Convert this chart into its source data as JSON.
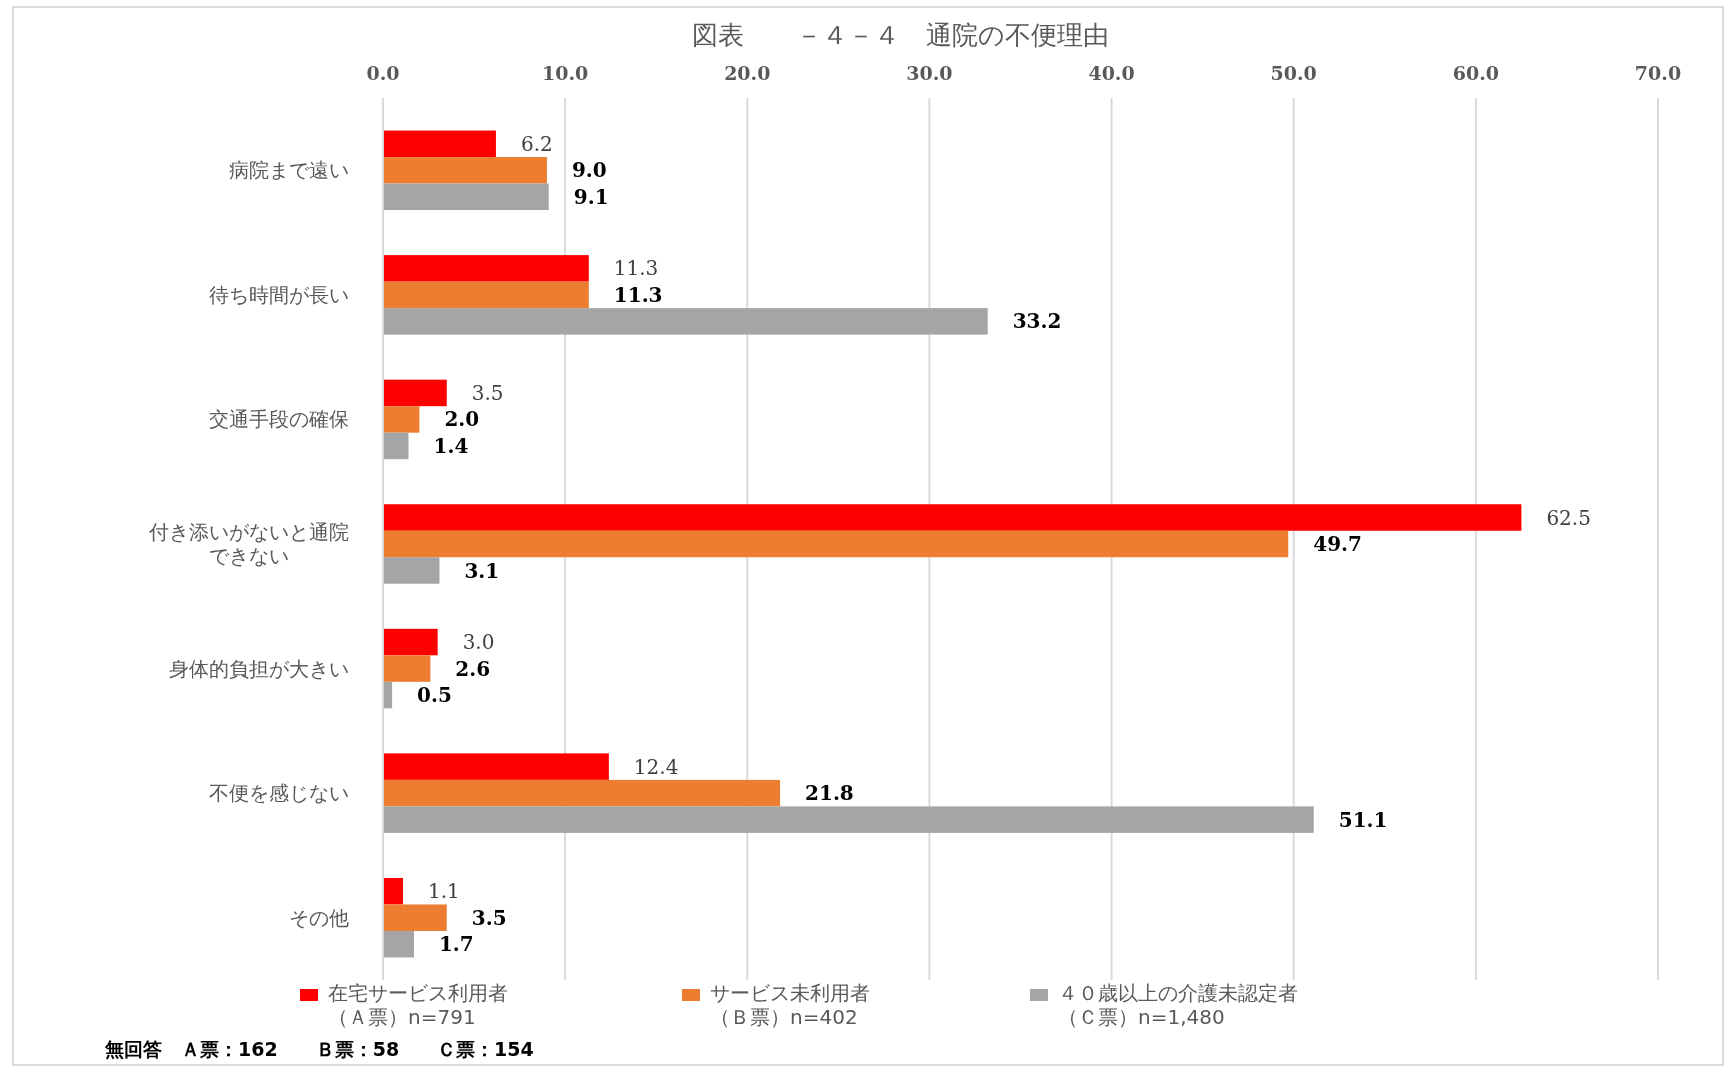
{
  "chart_data": {
    "type": "bar",
    "orientation": "horizontal",
    "title": "図表　　－４－４　通院の不便理由",
    "categories": [
      "病院まで遠い",
      "待ち時間が長い",
      "交通手段の確保",
      "付き添いがないと通院できない",
      "身体的負担が大きい",
      "不便を感じない",
      "その他"
    ],
    "series": [
      {
        "name": "在宅サービス利用者（Ａ票）n=791",
        "color": "#ff0000",
        "values": [
          6.2,
          11.3,
          3.5,
          62.5,
          3.0,
          12.4,
          1.1
        ],
        "value_labels": [
          "6.2",
          "11.3",
          "3.5",
          "62.5",
          "3.0",
          "12.4",
          "1.1"
        ]
      },
      {
        "name": "サービス未利用者（Ｂ票）n=402",
        "color": "#ed7d31",
        "values": [
          9.0,
          11.3,
          2.0,
          49.7,
          2.6,
          21.8,
          3.5
        ],
        "value_labels": [
          "9.0",
          "11.3",
          "2.0",
          "49.7",
          "2.6",
          "21.8",
          "3.5"
        ]
      },
      {
        "name": "４０歳以上の介護未認定者（Ｃ票）n=1,480",
        "color": "#a5a5a5",
        "values": [
          9.1,
          33.2,
          1.4,
          3.1,
          0.5,
          51.1,
          1.7
        ],
        "value_labels": [
          "9.1",
          "33.2",
          "1.4",
          "3.1",
          "0.5",
          "51.1",
          "1.7"
        ]
      }
    ],
    "xlim": [
      0,
      70
    ],
    "xticks": [
      {
        "value": 0,
        "label": "0.0"
      },
      {
        "value": 10,
        "label": "10.0"
      },
      {
        "value": 20,
        "label": "20.0"
      },
      {
        "value": 30,
        "label": "30.0"
      },
      {
        "value": 40,
        "label": "40.0"
      },
      {
        "value": 50,
        "label": "50.0"
      },
      {
        "value": 60,
        "label": "60.0"
      },
      {
        "value": 70,
        "label": "70.0"
      }
    ],
    "grid": "x",
    "legend": "bottom",
    "annotations": [
      "無回答　Ａ票：162　　Ｂ票：58　　Ｃ票：154"
    ]
  }
}
